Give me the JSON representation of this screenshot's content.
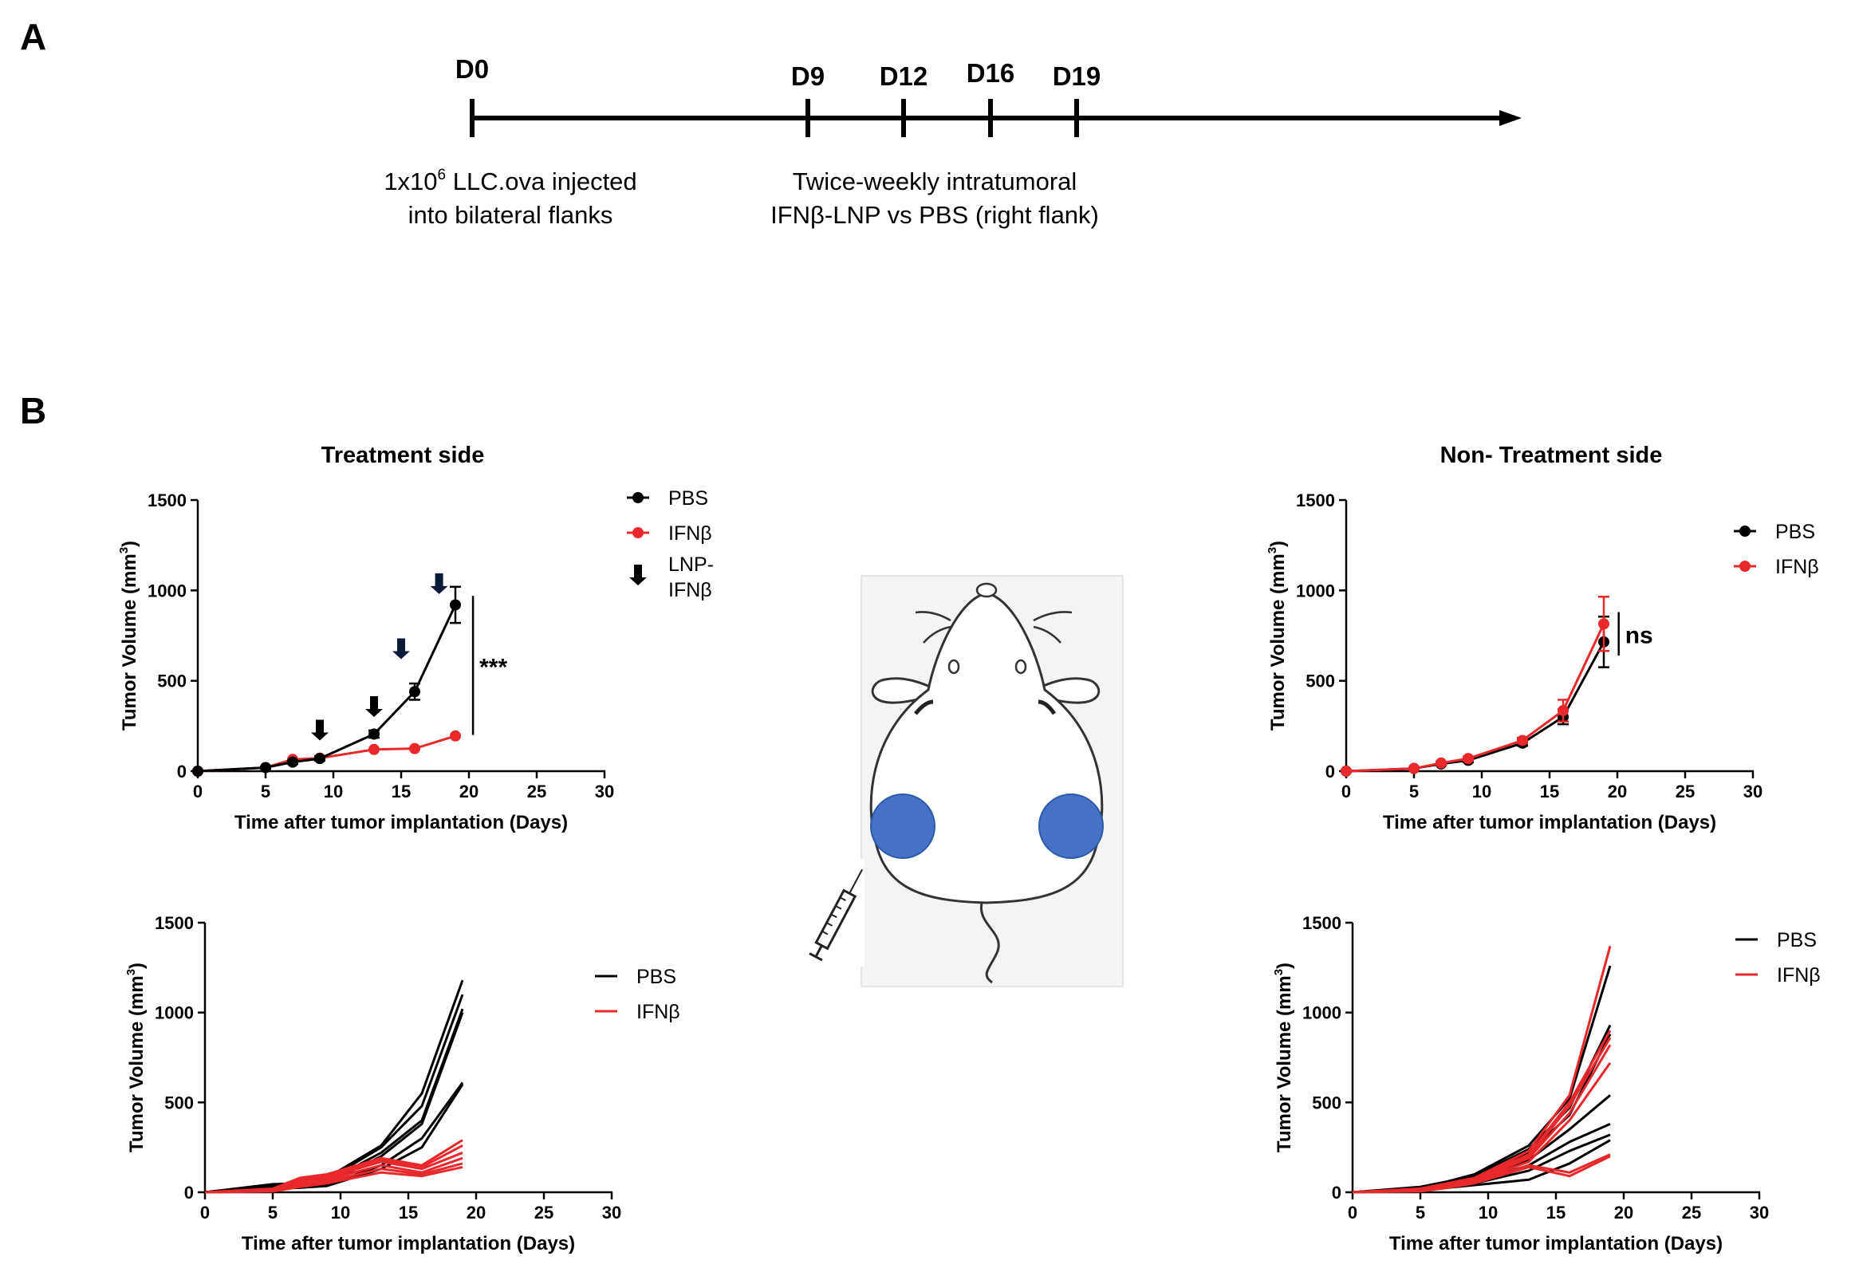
{
  "figure": {
    "panel_a_label": "A",
    "panel_b_label": "B"
  },
  "timeline": {
    "days": [
      "D0",
      "D9",
      "D12",
      "D16",
      "D19"
    ],
    "desc_left_prefix": "1x10",
    "desc_left_exponent": "6",
    "desc_left_rest": " LLC.ova injected",
    "desc_left_line2": "into bilateral  flanks",
    "desc_right_line1": "Twice-weekly  intratumoral",
    "desc_right_line2": "IFNβ-LNP vs PBS (right  flank)"
  },
  "illustration": {
    "subject": "mouse with bilateral flank tumors, syringe at right flank",
    "tumor_color": "#4472c4"
  },
  "colors": {
    "pbs": "#000000",
    "ifnb": "#e8282b",
    "arrow": "#0c1a3a"
  },
  "chart_data": [
    {
      "id": "mean-treatment",
      "type": "line",
      "title": "Treatment side",
      "xlabel": "Time after tumor implantation (Days)",
      "ylabel_main": "Tumor Volume (mm",
      "ylabel_sup": "3",
      "ylabel_close": ")",
      "xlim": [
        0,
        30
      ],
      "ylim": [
        0,
        1500
      ],
      "xticks": [
        "0",
        "5",
        "10",
        "15",
        "20",
        "25",
        "30"
      ],
      "yticks": [
        "0",
        "500",
        "1000",
        "1500"
      ],
      "series": [
        {
          "name": "PBS",
          "x": [
            0,
            5,
            7,
            9,
            13,
            16,
            19
          ],
          "y": [
            0,
            20,
            50,
            70,
            205,
            440,
            920
          ],
          "err": [
            0,
            5,
            10,
            12,
            20,
            45,
            100
          ]
        },
        {
          "name": "IFNβ",
          "x": [
            0,
            5,
            7,
            9,
            13,
            16,
            19
          ],
          "y": [
            0,
            20,
            65,
            72,
            120,
            125,
            195
          ],
          "err": [
            0,
            0,
            0,
            0,
            0,
            0,
            0
          ]
        }
      ],
      "legend": [
        {
          "label": "PBS",
          "kind": "marker",
          "color_key": "pbs"
        },
        {
          "label": "IFNβ",
          "kind": "marker",
          "color_key": "ifnb"
        },
        {
          "label": "LNP-",
          "label2": "IFNβ",
          "kind": "arrow"
        }
      ],
      "dosing_arrows": [
        {
          "x": 9,
          "y": 170,
          "tone": "black"
        },
        {
          "x": 13,
          "y": 300,
          "tone": "black"
        },
        {
          "x": 15,
          "y": 620,
          "tone": "navy"
        },
        {
          "x": 17.8,
          "y": 980,
          "tone": "navy"
        }
      ],
      "significance": {
        "label": "***",
        "x": 20.3,
        "y_from": 970,
        "y_to": 200
      }
    },
    {
      "id": "mean-nontreatment",
      "type": "line",
      "title": "Non- Treatment side",
      "xlabel": "Time after tumor implantation (Days)",
      "ylabel_main": "Tumor Volume (mm",
      "ylabel_sup": "3",
      "ylabel_close": ")",
      "xlim": [
        0,
        30
      ],
      "ylim": [
        0,
        1500
      ],
      "xticks": [
        "0",
        "5",
        "10",
        "15",
        "20",
        "25",
        "30"
      ],
      "yticks": [
        "0",
        "500",
        "1000",
        "1500"
      ],
      "series": [
        {
          "name": "PBS",
          "x": [
            0,
            5,
            7,
            9,
            13,
            16,
            19
          ],
          "y": [
            0,
            15,
            40,
            60,
            155,
            300,
            715
          ],
          "err": [
            0,
            5,
            8,
            10,
            15,
            40,
            140
          ]
        },
        {
          "name": "IFNβ",
          "x": [
            0,
            5,
            7,
            9,
            13,
            16,
            19
          ],
          "y": [
            0,
            15,
            45,
            70,
            170,
            335,
            815
          ],
          "err": [
            0,
            5,
            8,
            10,
            15,
            60,
            150
          ]
        }
      ],
      "legend": [
        {
          "label": "PBS",
          "kind": "marker",
          "color_key": "pbs"
        },
        {
          "label": "IFNβ",
          "kind": "marker",
          "color_key": "ifnb"
        }
      ],
      "significance": {
        "label": "ns",
        "x": 20.1,
        "y_from": 880,
        "y_to": 640
      }
    },
    {
      "id": "individual-treatment",
      "type": "line",
      "title": "",
      "xlabel": "Time after tumor implantation (Days)",
      "ylabel_main": "Tumor Volume (mm",
      "ylabel_sup": "3",
      "ylabel_close": ")",
      "xlim": [
        0,
        30
      ],
      "ylim": [
        0,
        1500
      ],
      "xticks": [
        "0",
        "5",
        "10",
        "15",
        "20",
        "25",
        "30"
      ],
      "yticks": [
        "0",
        "500",
        "1000",
        "1500"
      ],
      "x": [
        0,
        5,
        7,
        9,
        13,
        16,
        19
      ],
      "groups": [
        {
          "name": "PBS",
          "lines": [
            [
              0,
              45,
              50,
              80,
              260,
              550,
              1180
            ],
            [
              0,
              40,
              50,
              70,
              250,
              480,
              1100
            ],
            [
              0,
              35,
              45,
              60,
              220,
              400,
              1020
            ],
            [
              0,
              30,
              40,
              50,
              200,
              380,
              1000
            ],
            [
              0,
              25,
              30,
              40,
              150,
              300,
              610
            ],
            [
              0,
              20,
              25,
              35,
              130,
              250,
              600
            ]
          ]
        },
        {
          "name": "IFNβ",
          "lines": [
            [
              0,
              20,
              80,
              100,
              190,
              150,
              290
            ],
            [
              0,
              15,
              70,
              90,
              180,
              140,
              260
            ],
            [
              0,
              10,
              60,
              80,
              170,
              130,
              220
            ],
            [
              0,
              10,
              50,
              70,
              150,
              110,
              190
            ],
            [
              0,
              5,
              40,
              60,
              130,
              100,
              160
            ],
            [
              0,
              5,
              30,
              50,
              110,
              90,
              140
            ]
          ]
        }
      ],
      "legend": [
        {
          "label": "PBS",
          "kind": "line",
          "color_key": "pbs"
        },
        {
          "label": "IFNβ",
          "kind": "line",
          "color_key": "ifnb"
        }
      ]
    },
    {
      "id": "individual-nontreatment",
      "type": "line",
      "title": "",
      "xlabel": "Time after tumor implantation (Days)",
      "ylabel_main": "Tumor Volume (mm",
      "ylabel_sup": "3",
      "ylabel_close": ")",
      "xlim": [
        0,
        30
      ],
      "ylim": [
        0,
        1500
      ],
      "xticks": [
        "0",
        "5",
        "10",
        "15",
        "20",
        "25",
        "30"
      ],
      "yticks": [
        "0",
        "500",
        "1000",
        "1500"
      ],
      "x": [
        0,
        5,
        7,
        9,
        13,
        16,
        19
      ],
      "groups": [
        {
          "name": "PBS",
          "lines": [
            [
              0,
              30,
              60,
              100,
              260,
              520,
              1260
            ],
            [
              0,
              25,
              55,
              90,
              240,
              470,
              930
            ],
            [
              0,
              20,
              50,
              80,
              220,
              430,
              880
            ],
            [
              0,
              20,
              45,
              70,
              180,
              350,
              540
            ],
            [
              0,
              15,
              40,
              60,
              150,
              280,
              380
            ],
            [
              0,
              10,
              30,
              50,
              120,
              230,
              320
            ],
            [
              0,
              10,
              25,
              40,
              70,
              160,
              290
            ]
          ]
        },
        {
          "name": "IFNβ",
          "lines": [
            [
              0,
              20,
              50,
              80,
              230,
              540,
              1370
            ],
            [
              0,
              20,
              45,
              75,
              210,
              500,
              900
            ],
            [
              0,
              15,
              40,
              70,
              200,
              480,
              860
            ],
            [
              0,
              15,
              40,
              65,
              190,
              440,
              820
            ],
            [
              0,
              10,
              35,
              60,
              170,
              400,
              720
            ],
            [
              0,
              10,
              30,
              55,
              150,
              110,
              210
            ],
            [
              0,
              5,
              25,
              50,
              140,
              90,
              200
            ]
          ]
        }
      ],
      "legend": [
        {
          "label": "PBS",
          "kind": "line",
          "color_key": "pbs"
        },
        {
          "label": "IFNβ",
          "kind": "line",
          "color_key": "ifnb"
        }
      ]
    }
  ]
}
